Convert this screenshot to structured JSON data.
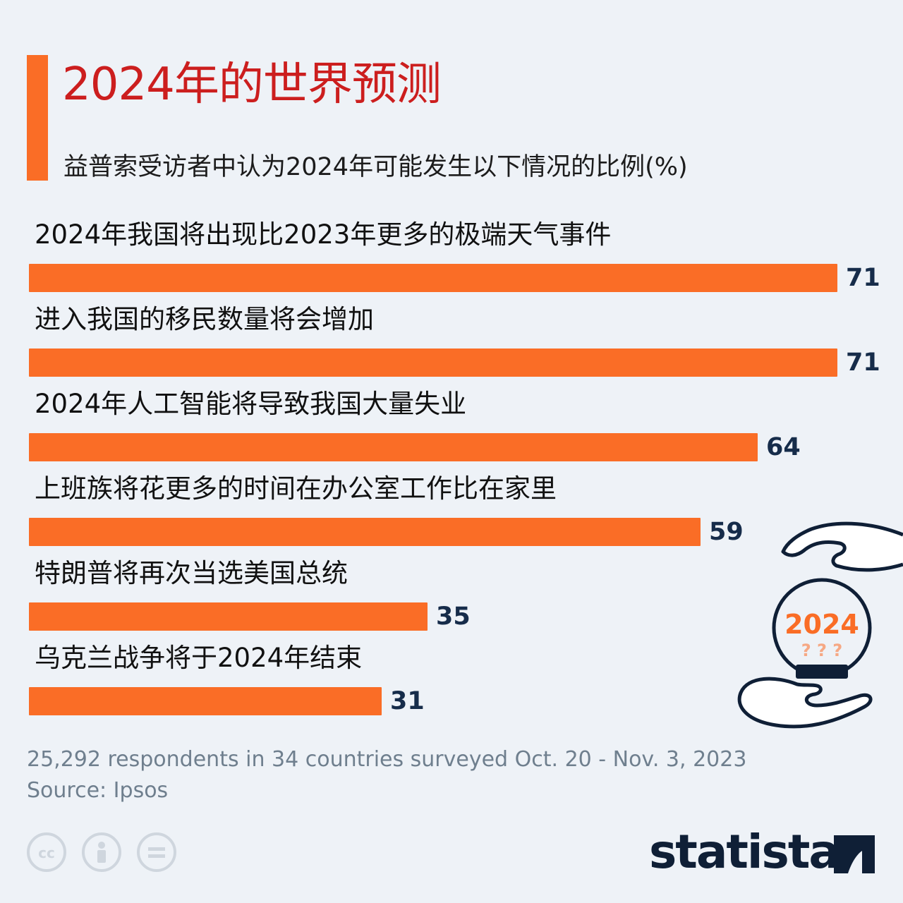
{
  "title": "2024年的世界预测",
  "subtitle": "益普索受访者中认为2024年可能发生以下情况的比例(%)",
  "chart_data": {
    "type": "bar",
    "orientation": "horizontal",
    "categories": [
      "2024年我国将出现比2023年更多的极端天气事件",
      "进入我国的移民数量将会增加",
      "2024年人工智能将导致我国大量失业",
      "上班族将花更多的时间在办公室工作比在家里",
      "特朗普将再次当选美国总统",
      "乌克兰战争将于2024年结束"
    ],
    "values": [
      71,
      71,
      64,
      59,
      35,
      31
    ],
    "value_labels": [
      "71",
      "71",
      "64",
      "59",
      "35",
      "31"
    ],
    "title": "2024年的世界预测",
    "subtitle": "益普索受访者中认为2024年可能发生以下情况的比例(%)",
    "xlim": [
      0,
      71
    ],
    "bar_color": "#fa6d26",
    "grid": false,
    "legend": "none"
  },
  "illustration": {
    "year_text": "2024",
    "marks": "? ? ?"
  },
  "footer": {
    "note": "25,292 respondents in 34 countries surveyed Oct. 20 - Nov. 3, 2023",
    "source": "Source: Ipsos"
  },
  "license_icons": [
    "cc-icon",
    "by-icon",
    "nd-icon"
  ],
  "brand": {
    "name": "statista"
  },
  "colors": {
    "accent": "#fa6d26",
    "title": "#cc1e1e",
    "value": "#162c4a",
    "footer": "#6f7f8e"
  }
}
